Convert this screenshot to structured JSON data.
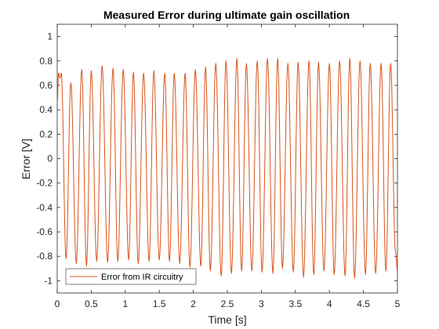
{
  "chart_data": {
    "type": "line",
    "title": "Measured Error during ultimate gain oscillation",
    "xlabel": "Time [s]",
    "ylabel": "Error [V]",
    "xlim": [
      0,
      5
    ],
    "ylim": [
      -1.1,
      1.1
    ],
    "xticks": [
      0,
      0.5,
      1,
      1.5,
      2,
      2.5,
      3,
      3.5,
      4,
      4.5,
      5
    ],
    "xtick_labels": [
      "0",
      "0.5",
      "1",
      "1.5",
      "2",
      "2.5",
      "3",
      "3.5",
      "4",
      "4.5",
      "5"
    ],
    "yticks": [
      -1,
      -0.8,
      -0.6,
      -0.4,
      -0.2,
      0,
      0.2,
      0.4,
      0.6,
      0.8,
      1
    ],
    "ytick_labels": [
      "-1",
      "-0.8",
      "-0.6",
      "-0.4",
      "-0.2",
      "0",
      "0.2",
      "0.4",
      "0.6",
      "0.8",
      "1"
    ],
    "grid": false,
    "legend_position": "bottom-left",
    "series": [
      {
        "name": "Error from IR circuitry",
        "color": "#d95319",
        "x": [
          0,
          0.02,
          0.04,
          0.06,
          0.13,
          0.2,
          0.28,
          0.36,
          0.43,
          0.5,
          0.58,
          0.66,
          0.74,
          0.82,
          0.89,
          0.97,
          1.05,
          1.12,
          1.19,
          1.27,
          1.35,
          1.42,
          1.5,
          1.58,
          1.65,
          1.72,
          1.8,
          1.88,
          1.95,
          2.03,
          2.11,
          2.18,
          2.25,
          2.33,
          2.41,
          2.48,
          2.56,
          2.64,
          2.71,
          2.78,
          2.86,
          2.94,
          3.01,
          3.09,
          3.17,
          3.24,
          3.31,
          3.39,
          3.47,
          3.54,
          3.62,
          3.7,
          3.77,
          3.84,
          3.92,
          4.0,
          4.07,
          4.15,
          4.23,
          4.3,
          4.37,
          4.45,
          4.53,
          4.6,
          4.68,
          4.76,
          4.83,
          4.9,
          4.97,
          5.0
        ],
        "y": [
          0.45,
          0.7,
          0.66,
          0.7,
          -0.82,
          0.62,
          -0.86,
          0.73,
          -0.88,
          0.72,
          -0.84,
          0.76,
          -0.85,
          0.74,
          -0.84,
          0.73,
          -0.83,
          0.71,
          -0.86,
          0.7,
          -0.84,
          0.72,
          -0.83,
          0.7,
          -0.84,
          0.7,
          -0.86,
          0.7,
          -0.89,
          0.73,
          -0.88,
          0.75,
          -0.92,
          0.78,
          -0.96,
          0.8,
          -0.94,
          0.82,
          -0.92,
          0.78,
          -0.92,
          0.8,
          -0.93,
          0.82,
          -0.94,
          0.82,
          -0.9,
          0.78,
          -0.93,
          0.79,
          -0.97,
          0.8,
          -0.95,
          0.79,
          -0.92,
          0.78,
          -0.95,
          0.8,
          -0.96,
          0.82,
          -0.98,
          0.8,
          -0.95,
          0.78,
          -0.94,
          0.78,
          -0.92,
          0.78,
          -0.76,
          -0.92
        ]
      }
    ]
  }
}
